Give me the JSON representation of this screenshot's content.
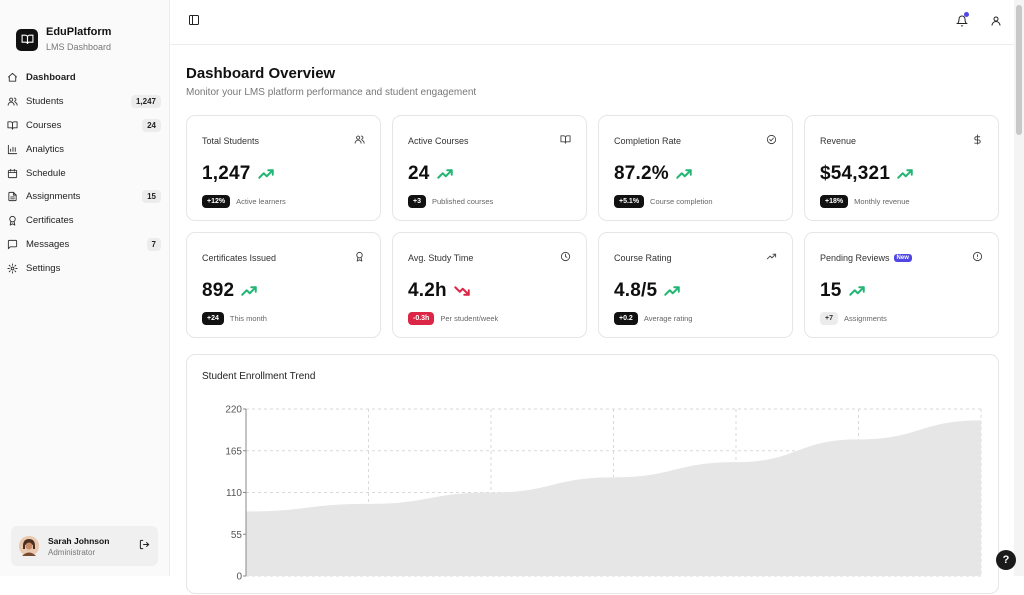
{
  "brand": {
    "title": "EduPlatform",
    "subtitle": "LMS Dashboard"
  },
  "nav": [
    {
      "label": "Dashboard",
      "icon": "home-icon",
      "count": ""
    },
    {
      "label": "Students",
      "icon": "users-icon",
      "count": "1,247"
    },
    {
      "label": "Courses",
      "icon": "book-icon",
      "count": "24"
    },
    {
      "label": "Analytics",
      "icon": "bar-chart-icon",
      "count": ""
    },
    {
      "label": "Schedule",
      "icon": "calendar-icon",
      "count": ""
    },
    {
      "label": "Assignments",
      "icon": "file-icon",
      "count": "15"
    },
    {
      "label": "Certificates",
      "icon": "award-icon",
      "count": ""
    },
    {
      "label": "Messages",
      "icon": "message-icon",
      "count": "7"
    },
    {
      "label": "Settings",
      "icon": "gear-icon",
      "count": ""
    }
  ],
  "user": {
    "name": "Sarah Johnson",
    "role": "Administrator"
  },
  "page": {
    "title": "Dashboard Overview",
    "subtitle": "Monitor your LMS platform performance and student engagement"
  },
  "stats": [
    {
      "label": "Total Students",
      "value": "1,247",
      "chip": "+12%",
      "desc": "Active learners",
      "trend": "up",
      "chip_style": "dark",
      "icon": "users-icon"
    },
    {
      "label": "Active Courses",
      "value": "24",
      "chip": "+3",
      "desc": "Published courses",
      "trend": "up",
      "chip_style": "dark",
      "icon": "book-icon"
    },
    {
      "label": "Completion Rate",
      "value": "87.2%",
      "chip": "+5.1%",
      "desc": "Course completion",
      "trend": "up",
      "chip_style": "dark",
      "icon": "check-circle-icon"
    },
    {
      "label": "Revenue",
      "value": "$54,321",
      "chip": "+18%",
      "desc": "Monthly revenue",
      "trend": "up",
      "chip_style": "dark",
      "icon": "dollar-icon"
    },
    {
      "label": "Certificates Issued",
      "value": "892",
      "chip": "+24",
      "desc": "This month",
      "trend": "up",
      "chip_style": "dark",
      "icon": "award-icon"
    },
    {
      "label": "Avg. Study Time",
      "value": "4.2h",
      "chip": "-0.3h",
      "desc": "Per student/week",
      "trend": "down",
      "chip_style": "red",
      "icon": "clock-icon"
    },
    {
      "label": "Course Rating",
      "value": "4.8/5",
      "chip": "+0.2",
      "desc": "Average rating",
      "trend": "up",
      "chip_style": "dark",
      "icon": "trending-up-icon"
    },
    {
      "label": "Pending Reviews",
      "value": "15",
      "chip": "+7",
      "desc": "Assignments",
      "trend": "up",
      "chip_style": "gray",
      "icon": "alert-circle-icon",
      "badge": "New"
    }
  ],
  "colors": {
    "trend_up": "#22b573",
    "trend_down": "#dc2645",
    "area_fill": "#e6e6e6"
  },
  "help_label": "?",
  "chart_data": {
    "type": "area",
    "title": "Student Enrollment Trend",
    "yticks": [
      "220",
      "165",
      "110",
      "55",
      "0"
    ],
    "ylim": [
      0,
      220
    ],
    "x": [
      0,
      1,
      2,
      3,
      4,
      5,
      6
    ],
    "values": [
      85,
      95,
      110,
      130,
      150,
      180,
      205
    ],
    "grid": true
  }
}
